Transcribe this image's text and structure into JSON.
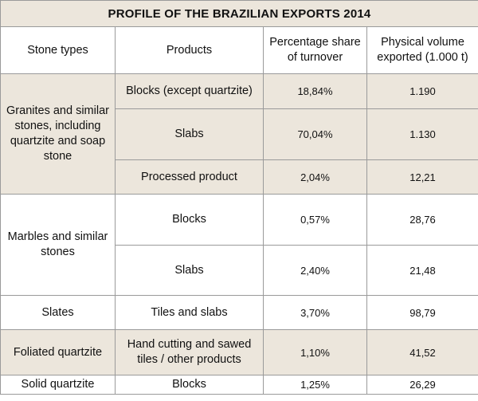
{
  "title": "PROFILE OF THE BRAZILIAN EXPORTS 2014",
  "headers": {
    "stone_types": "Stone types",
    "products": "Products",
    "percentage_share": "Percentage share of turnover",
    "physical_volume": "Physical volume exported (1.000 t)"
  },
  "groups": [
    {
      "stone_type": "Granites and similar stones, including quartzite and soap stone",
      "rows": [
        {
          "product": "Blocks (except quartzite)",
          "share": "18,84%",
          "volume": "1.190"
        },
        {
          "product": "Slabs",
          "share": "70,04%",
          "volume": "1.130"
        },
        {
          "product": "Processed product",
          "share": "2,04%",
          "volume": "12,21"
        }
      ]
    },
    {
      "stone_type": "Marbles and similar stones",
      "rows": [
        {
          "product": "Blocks",
          "share": "0,57%",
          "volume": "28,76"
        },
        {
          "product": "Slabs",
          "share": "2,40%",
          "volume": "21,48"
        }
      ]
    },
    {
      "stone_type": "Slates",
      "rows": [
        {
          "product": "Tiles and slabs",
          "share": "3,70%",
          "volume": "98,79"
        }
      ]
    },
    {
      "stone_type": "Foliated quartzite",
      "rows": [
        {
          "product": "Hand cutting and sawed tiles / other products",
          "share": "1,10%",
          "volume": "41,52"
        }
      ]
    },
    {
      "stone_type": "Solid quartzite",
      "rows": [
        {
          "product": "Blocks",
          "share": "1,25%",
          "volume": "26,29"
        }
      ]
    }
  ]
}
